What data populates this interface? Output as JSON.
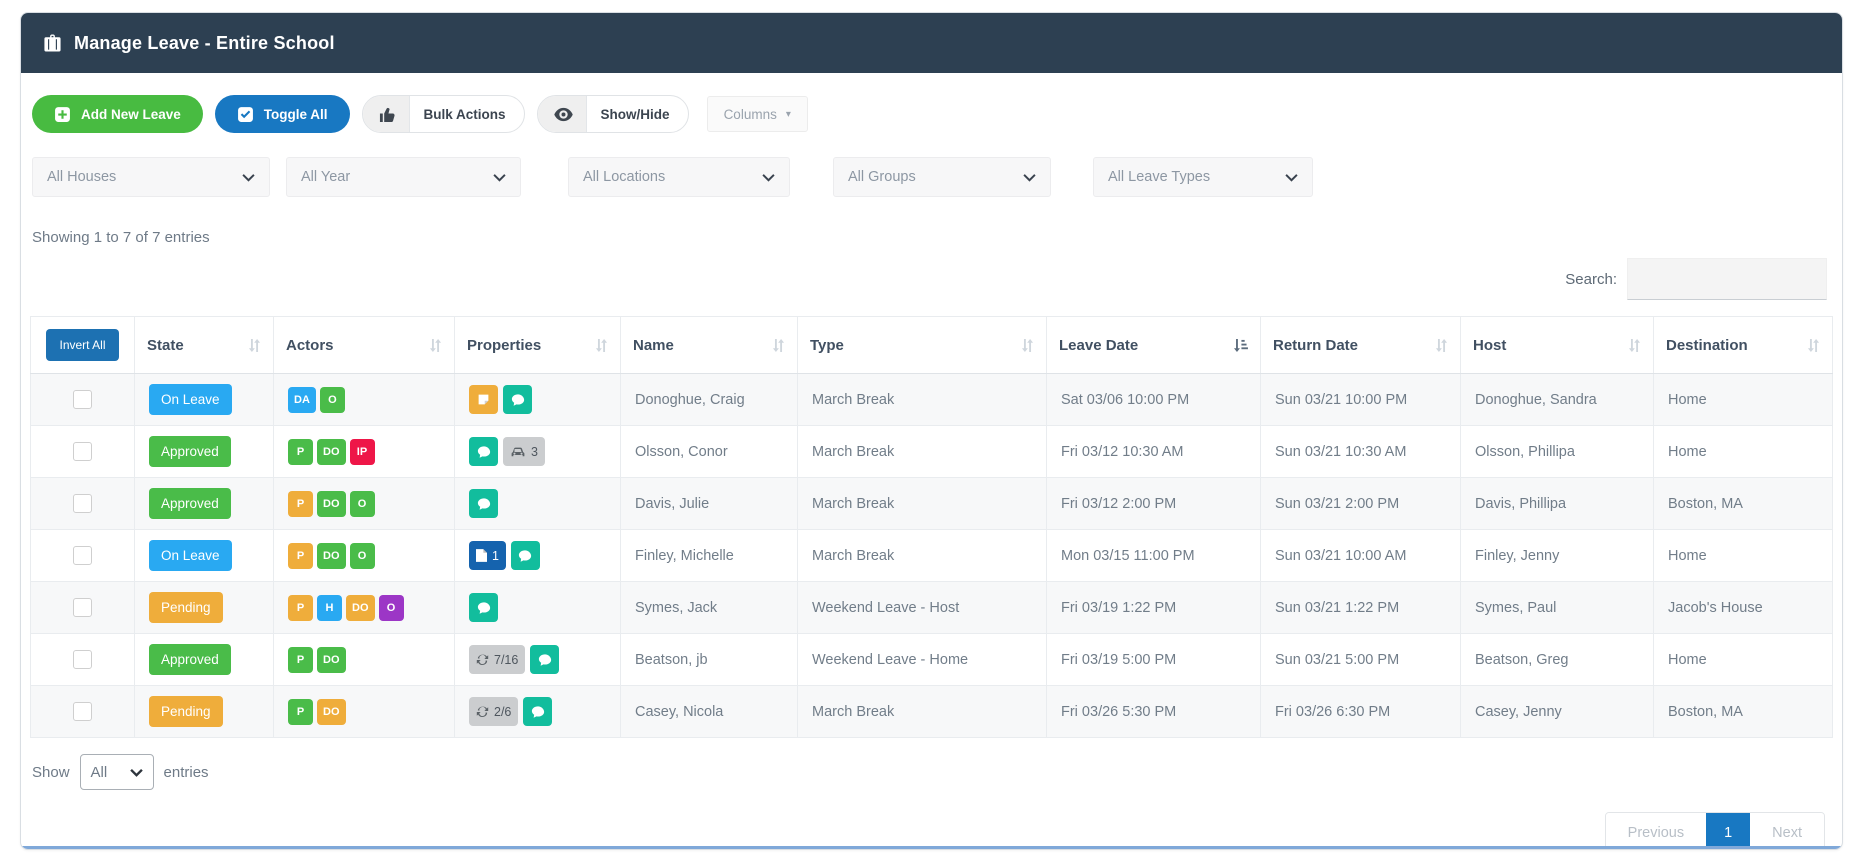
{
  "palette": {
    "sky": "#29a9f2",
    "green": "#4abc49",
    "amber": "#efad3b",
    "red": "#ee1648",
    "purple": "#9c36c6",
    "teal": "#12bd9d",
    "navy": "#1563ae",
    "gray": "#cbcdcf",
    "header_navy": "#2d4052",
    "button_green": "#48bb41",
    "button_blue": "#1878c2",
    "invert_blue": "#1d71b2",
    "active_page_blue": "#1878c2"
  },
  "header": {
    "title": "Manage Leave - Entire School",
    "icon": "briefcase-icon"
  },
  "toolbar": {
    "add_new_leave": "Add New Leave",
    "toggle_all": "Toggle All",
    "bulk_actions": "Bulk Actions",
    "show_hide": "Show/Hide",
    "columns": "Columns"
  },
  "filters": [
    {
      "label": "All Houses"
    },
    {
      "label": "All Year"
    },
    {
      "label": "All Locations"
    },
    {
      "label": "All Groups"
    },
    {
      "label": "All Leave Types"
    }
  ],
  "summary": {
    "showing_text": "Showing 1 to 7 of 7 entries"
  },
  "search": {
    "label": "Search:",
    "value": ""
  },
  "table": {
    "invert_all": "Invert All",
    "columns": [
      {
        "label": "State",
        "sort": "none"
      },
      {
        "label": "Actors",
        "sort": "none"
      },
      {
        "label": "Properties",
        "sort": "none"
      },
      {
        "label": "Name",
        "sort": "none"
      },
      {
        "label": "Type",
        "sort": "none"
      },
      {
        "label": "Leave Date",
        "sort": "asc"
      },
      {
        "label": "Return Date",
        "sort": "none"
      },
      {
        "label": "Host",
        "sort": "none"
      },
      {
        "label": "Destination",
        "sort": "none"
      }
    ],
    "rows": [
      {
        "state": {
          "label": "On Leave",
          "color": "sky"
        },
        "actors": [
          {
            "label": "DA",
            "color": "sky"
          },
          {
            "label": "O",
            "color": "green"
          }
        ],
        "properties": [
          {
            "icon": "note-icon",
            "color": "amber",
            "text": ""
          },
          {
            "icon": "chat-icon",
            "color": "teal",
            "text": ""
          }
        ],
        "name": "Donoghue, Craig",
        "type": "March Break",
        "leave_date": "Sat 03/06 10:00 PM",
        "return_date": "Sun 03/21 10:00 PM",
        "host": "Donoghue, Sandra",
        "destination": "Home"
      },
      {
        "state": {
          "label": "Approved",
          "color": "green"
        },
        "actors": [
          {
            "label": "P",
            "color": "green"
          },
          {
            "label": "DO",
            "color": "green"
          },
          {
            "label": "IP",
            "color": "red"
          }
        ],
        "properties": [
          {
            "icon": "chat-icon",
            "color": "teal",
            "text": ""
          },
          {
            "icon": "car-icon",
            "color": "gray",
            "text": "3"
          }
        ],
        "name": "Olsson, Conor",
        "type": "March Break",
        "leave_date": "Fri 03/12 10:30 AM",
        "return_date": "Sun 03/21 10:30 AM",
        "host": "Olsson, Phillipa",
        "destination": "Home"
      },
      {
        "state": {
          "label": "Approved",
          "color": "green"
        },
        "actors": [
          {
            "label": "P",
            "color": "amber"
          },
          {
            "label": "DO",
            "color": "green"
          },
          {
            "label": "O",
            "color": "green"
          }
        ],
        "properties": [
          {
            "icon": "chat-icon",
            "color": "teal",
            "text": ""
          }
        ],
        "name": "Davis, Julie",
        "type": "March Break",
        "leave_date": "Fri 03/12 2:00 PM",
        "return_date": "Sun 03/21 2:00 PM",
        "host": "Davis, Phillipa",
        "destination": "Boston, MA"
      },
      {
        "state": {
          "label": "On Leave",
          "color": "sky"
        },
        "actors": [
          {
            "label": "P",
            "color": "amber"
          },
          {
            "label": "DO",
            "color": "green"
          },
          {
            "label": "O",
            "color": "green"
          }
        ],
        "properties": [
          {
            "icon": "document-icon",
            "color": "navy",
            "text": "1"
          },
          {
            "icon": "chat-icon",
            "color": "teal",
            "text": ""
          }
        ],
        "name": "Finley, Michelle",
        "type": "March Break",
        "leave_date": "Mon 03/15 11:00 PM",
        "return_date": "Sun 03/21 10:00 AM",
        "host": "Finley, Jenny",
        "destination": "Home"
      },
      {
        "state": {
          "label": "Pending",
          "color": "amber"
        },
        "actors": [
          {
            "label": "P",
            "color": "amber"
          },
          {
            "label": "H",
            "color": "sky"
          },
          {
            "label": "DO",
            "color": "amber"
          },
          {
            "label": "O",
            "color": "purple"
          }
        ],
        "properties": [
          {
            "icon": "chat-icon",
            "color": "teal",
            "text": ""
          }
        ],
        "name": "Symes, Jack",
        "type": "Weekend Leave - Host",
        "leave_date": "Fri 03/19 1:22 PM",
        "return_date": "Sun 03/21 1:22 PM",
        "host": "Symes, Paul",
        "destination": "Jacob's House"
      },
      {
        "state": {
          "label": "Approved",
          "color": "green"
        },
        "actors": [
          {
            "label": "P",
            "color": "green"
          },
          {
            "label": "DO",
            "color": "green"
          }
        ],
        "properties": [
          {
            "icon": "recurrence-icon",
            "color": "gray",
            "text": "7/16"
          },
          {
            "icon": "chat-icon",
            "color": "teal",
            "text": ""
          }
        ],
        "name": "Beatson, jb",
        "type": "Weekend Leave - Home",
        "leave_date": "Fri 03/19 5:00 PM",
        "return_date": "Sun 03/21 5:00 PM",
        "host": "Beatson, Greg",
        "destination": "Home"
      },
      {
        "state": {
          "label": "Pending",
          "color": "amber"
        },
        "actors": [
          {
            "label": "P",
            "color": "green"
          },
          {
            "label": "DO",
            "color": "amber"
          }
        ],
        "properties": [
          {
            "icon": "recurrence-icon",
            "color": "gray",
            "text": "2/6"
          },
          {
            "icon": "chat-icon",
            "color": "teal",
            "text": ""
          }
        ],
        "name": "Casey, Nicola",
        "type": "March Break",
        "leave_date": "Fri 03/26 5:30 PM",
        "return_date": "Fri 03/26 6:30 PM",
        "host": "Casey, Jenny",
        "destination": "Boston, MA"
      }
    ]
  },
  "footer": {
    "show_label": "Show",
    "page_size_value": "All",
    "entries_label": "entries",
    "pagination": {
      "previous": "Previous",
      "page": "1",
      "next": "Next"
    }
  }
}
